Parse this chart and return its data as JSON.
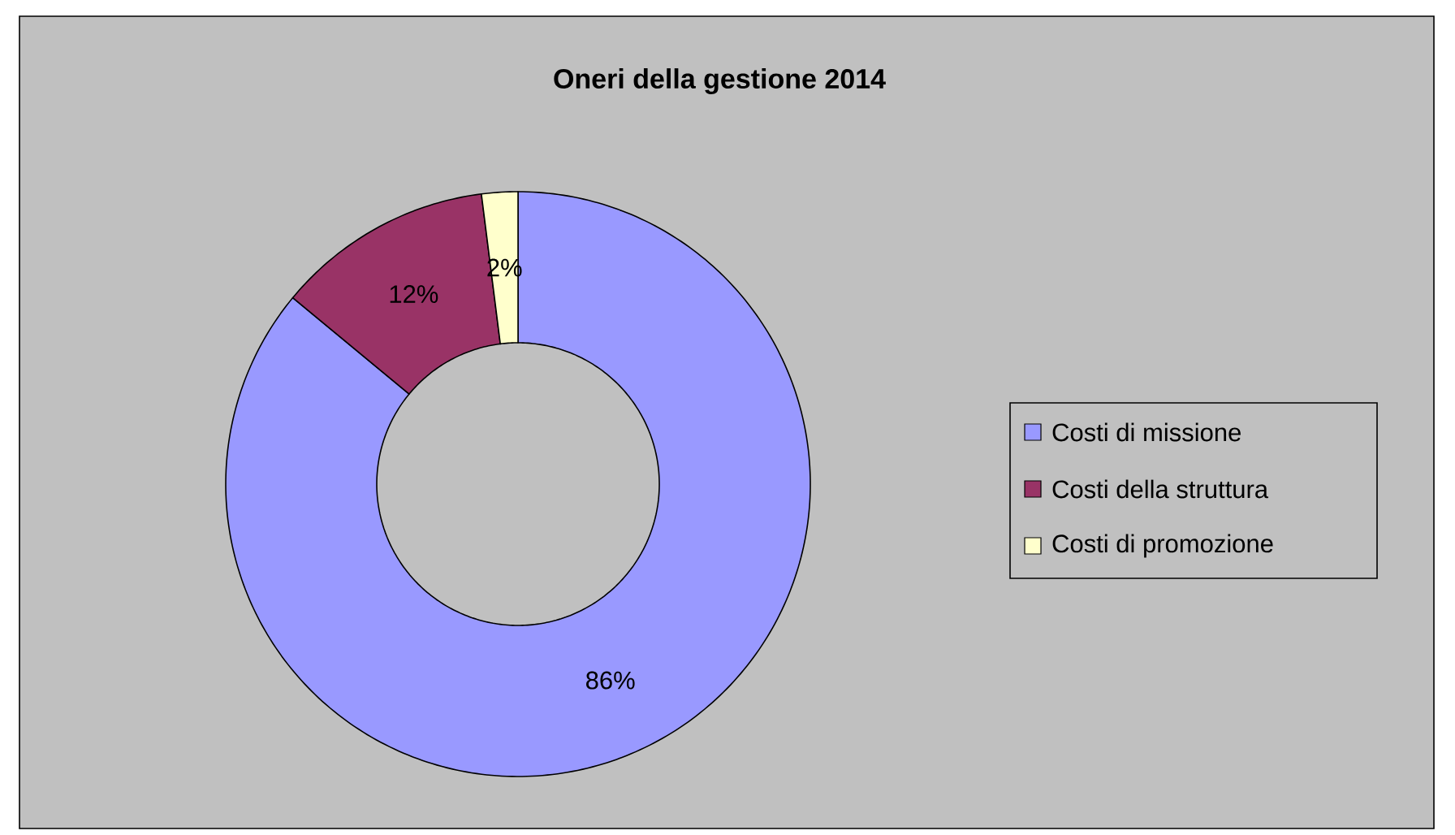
{
  "chart_data": {
    "type": "donut",
    "title": "Oneri della gestione 2014",
    "categories": [
      "Costi di missione",
      "Costi della struttura",
      "Costi di promozione"
    ],
    "values": [
      86,
      12,
      2
    ],
    "colors": [
      "#9999ff",
      "#993366",
      "#ffffcc"
    ],
    "value_labels": [
      "86%",
      "12%",
      "2%"
    ],
    "legend": "right"
  }
}
